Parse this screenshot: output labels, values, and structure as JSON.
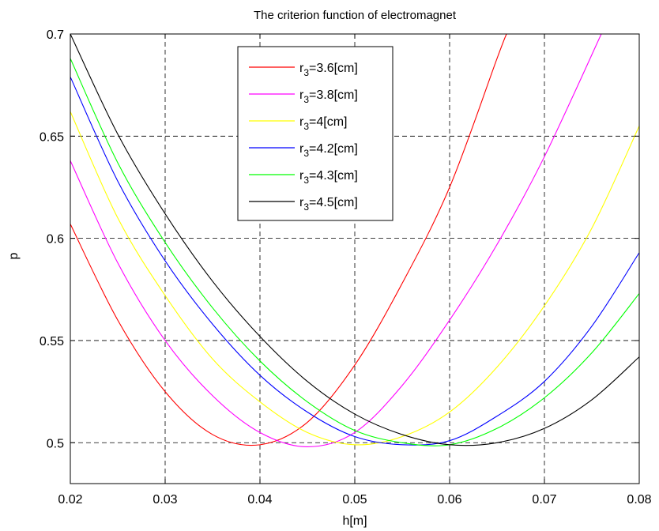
{
  "chart_data": {
    "type": "line",
    "title": "The criterion function of electromagnet",
    "xlabel": "h[m]",
    "ylabel": "p",
    "xlim": [
      0.02,
      0.08
    ],
    "ylim": [
      0.48,
      0.7
    ],
    "xticks": [
      0.02,
      0.03,
      0.04,
      0.05,
      0.06,
      0.07,
      0.08
    ],
    "xtick_labels": [
      "0.02",
      "0.03",
      "0.04",
      "0.05",
      "0.06",
      "0.07",
      "0.08"
    ],
    "yticks": [
      0.5,
      0.55,
      0.6,
      0.65,
      0.7
    ],
    "ytick_labels": [
      "0.5",
      "0.55",
      "0.6",
      "0.65",
      "0.7"
    ],
    "grid": true,
    "legend_position": "top-center",
    "series": [
      {
        "name": "3.6[cm]",
        "color": "#ff0000",
        "x": [
          0.02,
          0.025,
          0.03,
          0.035,
          0.04,
          0.045,
          0.05,
          0.055,
          0.06,
          0.065,
          0.066
        ],
        "y": [
          0.607,
          0.56,
          0.525,
          0.504,
          0.499,
          0.51,
          0.538,
          0.578,
          0.625,
          0.688,
          0.7
        ]
      },
      {
        "name": "3.8[cm]",
        "color": "#ff00ff",
        "x": [
          0.02,
          0.025,
          0.03,
          0.035,
          0.04,
          0.045,
          0.05,
          0.055,
          0.06,
          0.065,
          0.07,
          0.076
        ],
        "y": [
          0.638,
          0.588,
          0.55,
          0.523,
          0.505,
          0.498,
          0.505,
          0.528,
          0.56,
          0.597,
          0.64,
          0.7
        ]
      },
      {
        "name": "4[cm]",
        "color": "#ffff00",
        "x": [
          0.02,
          0.025,
          0.03,
          0.035,
          0.04,
          0.045,
          0.05,
          0.055,
          0.06,
          0.065,
          0.07,
          0.075,
          0.08
        ],
        "y": [
          0.662,
          0.61,
          0.572,
          0.541,
          0.52,
          0.505,
          0.499,
          0.503,
          0.515,
          0.537,
          0.567,
          0.605,
          0.655
        ]
      },
      {
        "name": "4.2[cm]",
        "color": "#0000ff",
        "x": [
          0.02,
          0.025,
          0.03,
          0.035,
          0.04,
          0.045,
          0.05,
          0.055,
          0.06,
          0.065,
          0.07,
          0.075,
          0.08
        ],
        "y": [
          0.679,
          0.628,
          0.589,
          0.558,
          0.533,
          0.515,
          0.503,
          0.499,
          0.501,
          0.513,
          0.53,
          0.557,
          0.593
        ]
      },
      {
        "name": "4.3[cm]",
        "color": "#00ff00",
        "x": [
          0.02,
          0.025,
          0.03,
          0.035,
          0.04,
          0.045,
          0.05,
          0.055,
          0.06,
          0.065,
          0.07,
          0.075,
          0.08
        ],
        "y": [
          0.688,
          0.637,
          0.598,
          0.566,
          0.54,
          0.52,
          0.506,
          0.5,
          0.499,
          0.507,
          0.522,
          0.544,
          0.573
        ]
      },
      {
        "name": "4.5[cm]",
        "color": "#000000",
        "x": [
          0.02,
          0.025,
          0.03,
          0.035,
          0.04,
          0.045,
          0.05,
          0.055,
          0.06,
          0.065,
          0.07,
          0.075,
          0.08
        ],
        "y": [
          0.7,
          0.651,
          0.612,
          0.579,
          0.552,
          0.53,
          0.514,
          0.504,
          0.499,
          0.5,
          0.507,
          0.521,
          0.542
        ]
      }
    ]
  }
}
